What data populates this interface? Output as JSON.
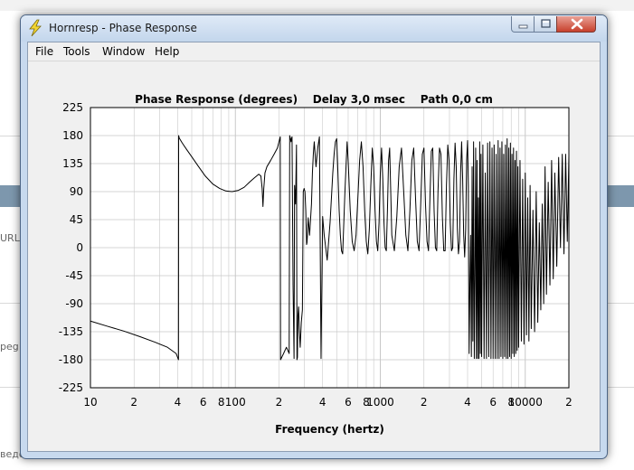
{
  "window": {
    "title": "Hornresp - Phase Response"
  },
  "menu": [
    {
      "label": "File"
    },
    {
      "label": "Tools"
    },
    {
      "label": "Window"
    },
    {
      "label": "Help"
    }
  ],
  "background": {
    "left_text_1": "URL]",
    "left_text_2": "peg ji",
    "left_text_3": "ведо"
  },
  "colors": {
    "plot_bg": "#ffffff",
    "grid": "#c8c8c8",
    "trace": "#000000",
    "client_bg": "#f0f0f0"
  },
  "chart_data": {
    "type": "line",
    "title": "Phase Response (degrees)    Delay 3,0 msec    Path 0,0 cm",
    "xlabel": "Frequency (hertz)",
    "ylabel": "",
    "xscale": "log",
    "xlim": [
      10,
      20000
    ],
    "ylim": [
      -225,
      225
    ],
    "yticks": [
      225,
      180,
      135,
      90,
      45,
      0,
      -45,
      -90,
      -135,
      -180,
      -225
    ],
    "ytick_labels": [
      "225",
      "180",
      "135",
      "90",
      "45",
      "0",
      "-45",
      "-90",
      "-135",
      "-180",
      "-225"
    ],
    "xtick_labels": [
      {
        "value": 10,
        "label": "10"
      },
      {
        "value": 20,
        "label": "2"
      },
      {
        "value": 40,
        "label": "4"
      },
      {
        "value": 60,
        "label": "6"
      },
      {
        "value": 80,
        "label": "8"
      },
      {
        "value": 100,
        "label": "100"
      },
      {
        "value": 200,
        "label": "2"
      },
      {
        "value": 400,
        "label": "4"
      },
      {
        "value": 600,
        "label": "6"
      },
      {
        "value": 800,
        "label": "8"
      },
      {
        "value": 1000,
        "label": "1000"
      },
      {
        "value": 2000,
        "label": "2"
      },
      {
        "value": 4000,
        "label": "4"
      },
      {
        "value": 6000,
        "label": "6"
      },
      {
        "value": 8000,
        "label": "8"
      },
      {
        "value": 10000,
        "label": "10000"
      },
      {
        "value": 20000,
        "label": "2"
      }
    ],
    "grid": true,
    "series": [
      {
        "x": [
          10,
          13,
          17,
          22,
          28,
          34,
          39,
          40.5,
          40.6,
          41,
          43,
          46,
          50,
          55,
          62,
          70,
          78,
          86,
          95,
          105,
          115,
          125,
          135,
          145,
          150,
          153,
          155,
          157,
          160,
          165,
          175,
          185,
          195,
          204,
          205,
          215,
          225,
          235,
          237,
          240,
          242,
          244,
          246,
          250,
          252,
          254,
          256,
          260,
          264,
          266,
          268,
          270,
          273,
          276,
          280,
          285,
          290,
          294,
          298,
          302,
          306,
          309,
          310,
          312,
          314,
          316,
          318,
          320,
          325,
          330,
          335,
          340,
          345,
          350,
          355,
          360,
          370,
          380,
          390,
          400,
          410,
          420,
          430,
          440,
          450,
          460,
          470,
          480,
          490,
          500,
          510,
          520,
          530,
          540,
          550,
          560,
          570,
          580,
          590,
          600,
          620,
          640,
          660,
          680,
          700,
          720,
          740,
          760,
          780,
          800,
          820,
          840,
          860,
          880,
          900,
          920,
          940,
          960,
          980,
          1000,
          1020,
          1040,
          1060,
          1080,
          1100,
          1120,
          1140,
          1160,
          1180,
          1200,
          1250,
          1300,
          1350,
          1400,
          1450,
          1500,
          1550,
          1600,
          1650,
          1700,
          1750,
          1800,
          1850,
          1900,
          1950,
          2000,
          2050,
          2100,
          2150,
          2200,
          2250,
          2300,
          2350,
          2400,
          2450,
          2500,
          2560,
          2620,
          2680,
          2740,
          2800,
          2860,
          2920,
          2980,
          3040,
          3100,
          3160,
          3220,
          3280,
          3340,
          3400,
          3460,
          3520,
          3580,
          3640,
          3700,
          3760,
          3820,
          3880,
          3940,
          4000,
          4050,
          4100,
          4150,
          4200,
          4250,
          4300,
          4350,
          4400,
          4450,
          4500,
          4550,
          4600,
          4650,
          4700,
          4750,
          4800,
          4850,
          4900,
          4950,
          5000,
          5100,
          5200,
          5300,
          5400,
          5500,
          5600,
          5700,
          5800,
          5900,
          6000,
          6100,
          6200,
          6300,
          6400,
          6500,
          6600,
          6700,
          6800,
          6900,
          7000,
          7100,
          7200,
          7300,
          7400,
          7500,
          7600,
          7700,
          7800,
          7900,
          8000,
          8100,
          8200,
          8300,
          8400,
          8500,
          8600,
          8700,
          8800,
          8900,
          9000,
          9200,
          9400,
          9600,
          9800,
          10000,
          10200,
          10400,
          10600,
          10800,
          11000,
          11300,
          11600,
          11900,
          12200,
          12500,
          12800,
          13100,
          13400,
          13700,
          14000,
          14400,
          14800,
          15200,
          15600,
          16000,
          16500,
          17000,
          17500,
          18000,
          18500,
          19000,
          19500,
          20000
        ],
        "y": [
          -118,
          -126,
          -134,
          -143,
          -152,
          -160,
          -170,
          -180,
          180,
          176,
          168,
          158,
          146,
          132,
          115,
          102,
          95,
          91,
          90,
          92,
          97,
          105,
          112,
          118,
          115,
          95,
          66,
          95,
          120,
          130,
          140,
          150,
          160,
          178,
          -180,
          -170,
          -160,
          -170,
          180,
          175,
          170,
          175,
          178,
          -60,
          -120,
          -178,
          100,
          70,
          165,
          -180,
          -176,
          -110,
          -95,
          -130,
          -160,
          -120,
          -100,
          90,
          95,
          90,
          60,
          20,
          5,
          8,
          20,
          35,
          48,
          40,
          20,
          45,
          70,
          120,
          150,
          170,
          150,
          130,
          160,
          178,
          -178,
          50,
          20,
          0,
          -20,
          10,
          40,
          80,
          120,
          150,
          170,
          175,
          120,
          60,
          20,
          -5,
          -10,
          40,
          90,
          130,
          170,
          140,
          60,
          10,
          -5,
          20,
          80,
          140,
          170,
          130,
          60,
          10,
          -10,
          30,
          100,
          160,
          130,
          60,
          10,
          -5,
          40,
          120,
          160,
          110,
          40,
          0,
          -5,
          60,
          140,
          160,
          90,
          20,
          -5,
          50,
          130,
          160,
          90,
          20,
          -5,
          60,
          140,
          160,
          80,
          10,
          -5,
          70,
          150,
          160,
          70,
          10,
          -5,
          80,
          155,
          160,
          60,
          0,
          -5,
          90,
          160,
          150,
          50,
          -5,
          -5,
          100,
          165,
          140,
          40,
          -5,
          0,
          110,
          168,
          130,
          30,
          -10,
          10,
          120,
          170,
          110,
          20,
          -15,
          30,
          140,
          172,
          100,
          -170,
          -60,
          20,
          -175,
          130,
          -150,
          170,
          -178,
          -50,
          160,
          -178,
          140,
          -178,
          80,
          -178,
          170,
          -170,
          150,
          -175,
          165,
          -178,
          120,
          -178,
          168,
          -175,
          170,
          -178,
          160,
          -178,
          165,
          -178,
          150,
          -178,
          172,
          -178,
          160,
          -175,
          170,
          -178,
          150,
          -175,
          165,
          -178,
          175,
          -178,
          160,
          -175,
          168,
          -178,
          150,
          -170,
          160,
          -175,
          140,
          -170,
          155,
          -165,
          130,
          -160,
          140,
          -150,
          110,
          -155,
          120,
          -140,
          80,
          -150,
          100,
          -130,
          60,
          -135,
          90,
          -120,
          40,
          -100,
          70,
          -90,
          130,
          -75,
          105,
          -60,
          140,
          -50,
          120,
          -30,
          145,
          0,
          150,
          -10,
          150,
          10,
          148
        ]
      }
    ]
  }
}
